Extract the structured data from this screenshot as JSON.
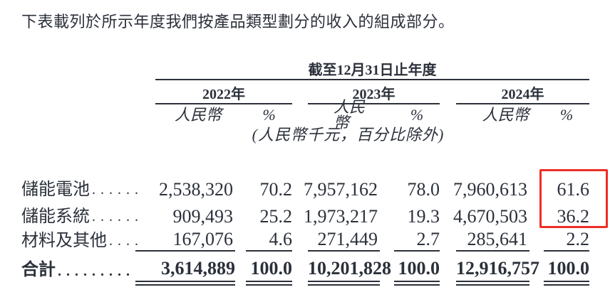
{
  "page": {
    "intro_text": "下表載列於所示年度我們按產品類型劃分的收入的組成部分。"
  },
  "table": {
    "period_header": "截至12月31日止年度",
    "years": [
      "2022年",
      "2023年",
      "2024年"
    ],
    "currency_label": "人民幣",
    "percent_label": "%",
    "unit_note": "(人民幣千元，百分比除外)",
    "rows": [
      {
        "label": "儲能電池",
        "dots": "......",
        "values": [
          "2,538,320",
          "70.2",
          "7,957,162",
          "78.0",
          "7,960,613",
          "61.6"
        ]
      },
      {
        "label": "儲能系統",
        "dots": "......",
        "values": [
          "909,493",
          "25.2",
          "1,973,217",
          "19.3",
          "4,670,503",
          "36.2"
        ]
      },
      {
        "label": "材料及其他",
        "dots": "....",
        "values": [
          "167,076",
          "4.6",
          "271,449",
          "2.7",
          "285,641",
          "2.2"
        ]
      }
    ],
    "total_row": {
      "label": "合計",
      "dots": ".........",
      "values": [
        "3,614,889",
        "100.0",
        "10,201,828",
        "100.0",
        "12,916,757",
        "100.0"
      ]
    }
  },
  "highlight": {
    "color": "#ee2e24"
  },
  "colors": {
    "ink": "#2b303a"
  }
}
